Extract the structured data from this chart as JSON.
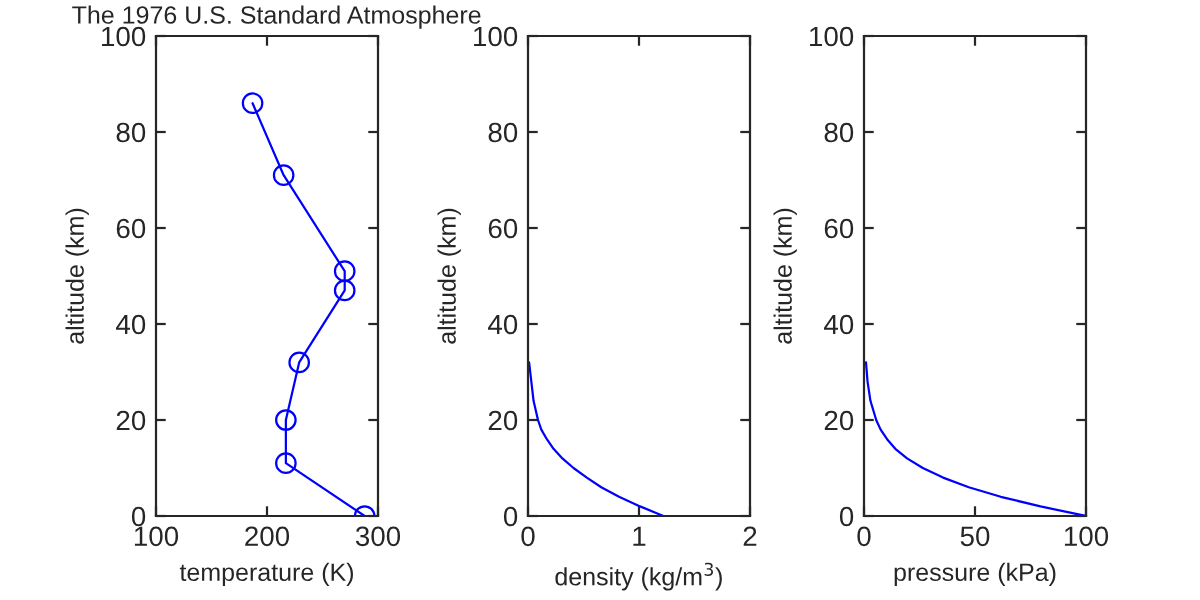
{
  "chart_data": [
    {
      "type": "line",
      "title": "The 1976 U.S. Standard Atmosphere",
      "xlabel": "temperature (K)",
      "ylabel": "altitude (km)",
      "marker": "circle",
      "series": [
        {
          "color": "#0000ff",
          "x": [
            288,
            217,
            217,
            229,
            270,
            270,
            215,
            187
          ],
          "values": [
            0,
            11,
            20,
            32,
            47,
            51,
            71,
            86
          ]
        }
      ],
      "xlim": [
        100,
        300
      ],
      "xticks": [
        100,
        200,
        300
      ],
      "ylim": [
        0,
        100
      ],
      "yticks": [
        0,
        20,
        40,
        60,
        80,
        100
      ]
    },
    {
      "type": "line",
      "xlabel": "density (kg/m$^{3}$)",
      "ylabel": "altitude (km)",
      "marker": "none",
      "series": [
        {
          "color": "#0000ff",
          "x": [
            1.22,
            1.01,
            0.82,
            0.66,
            0.53,
            0.41,
            0.31,
            0.23,
            0.17,
            0.12,
            0.09,
            0.05,
            0.03,
            0.01
          ],
          "values": [
            0,
            2,
            4,
            6,
            8,
            10,
            12,
            14,
            16,
            18,
            20,
            24,
            28,
            32
          ]
        }
      ],
      "xlim": [
        0,
        2
      ],
      "xticks": [
        0,
        1,
        2
      ],
      "ylim": [
        0,
        100
      ],
      "yticks": [
        0,
        20,
        40,
        60,
        80,
        100
      ]
    },
    {
      "type": "line",
      "xlabel": "pressure (kPa)",
      "ylabel": "altitude (km)",
      "marker": "none",
      "series": [
        {
          "color": "#0000ff",
          "x": [
            100,
            79.5,
            61.6,
            47.2,
            35.6,
            26.5,
            19.4,
            14.1,
            10.4,
            7.5,
            5.5,
            2.9,
            1.6,
            0.9
          ],
          "values": [
            0,
            2,
            4,
            6,
            8,
            10,
            12,
            14,
            16,
            18,
            20,
            24,
            28,
            32
          ]
        }
      ],
      "xlim": [
        0,
        100
      ],
      "xticks": [
        0,
        50,
        100
      ],
      "ylim": [
        0,
        100
      ],
      "yticks": [
        0,
        20,
        40,
        60,
        80,
        100
      ]
    }
  ]
}
